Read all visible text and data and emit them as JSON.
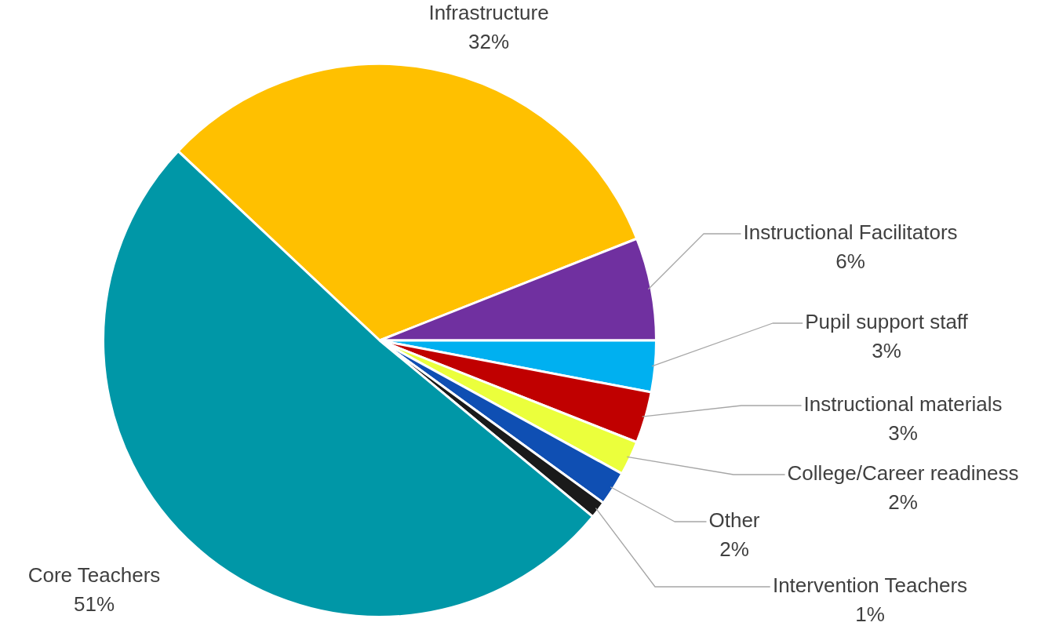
{
  "chart_data": {
    "type": "pie",
    "categories": [
      "Infrastructure",
      "Instructional Facilitators",
      "Pupil support staff",
      "Instructional materials",
      "College/Career readiness",
      "Other",
      "Intervention Teachers",
      "Core Teachers"
    ],
    "values": [
      32,
      6,
      3,
      3,
      2,
      2,
      1,
      51
    ],
    "colors": [
      "#ffc000",
      "#7030a0",
      "#00b0f0",
      "#c00000",
      "#ebff3c",
      "#0f4fb3",
      "#1a1a1a",
      "#0097a7"
    ],
    "value_labels": [
      "32%",
      "6%",
      "3%",
      "3%",
      "2%",
      "2%",
      "1%",
      "51%"
    ],
    "legend": false
  }
}
